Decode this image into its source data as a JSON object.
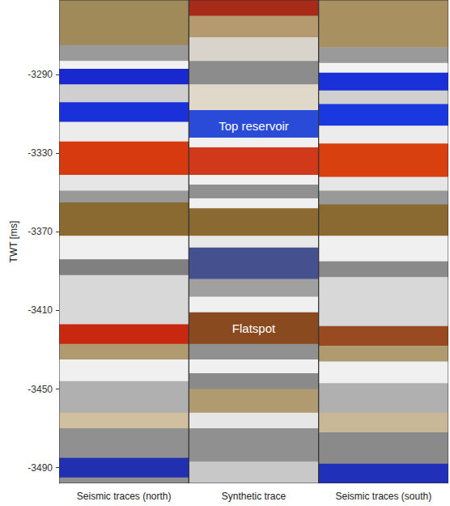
{
  "chart_data": {
    "type": "seismic",
    "y_label": "TWT [ms]",
    "ylim": [
      -3498,
      -3252
    ],
    "yticks": [
      -3490,
      -3450,
      -3410,
      -3370,
      -3330,
      -3290
    ],
    "panels": [
      {
        "name": "Seismic traces (north)",
        "bands": [
          {
            "from": -3275,
            "to": -3252,
            "color": "#a08a5a"
          },
          {
            "from": -3283,
            "to": -3275,
            "color": "#9a9a9a"
          },
          {
            "from": -3287,
            "to": -3283,
            "color": "#f2f2f2"
          },
          {
            "from": -3295,
            "to": -3287,
            "color": "#1a28d0"
          },
          {
            "from": -3304,
            "to": -3295,
            "color": "#cfcfcf"
          },
          {
            "from": -3314,
            "to": -3304,
            "color": "#1a30d8"
          },
          {
            "from": -3324,
            "to": -3314,
            "color": "#ececec"
          },
          {
            "from": -3341,
            "to": -3324,
            "color": "#d83a10"
          },
          {
            "from": -3349,
            "to": -3341,
            "color": "#e6e6e6"
          },
          {
            "from": -3355,
            "to": -3349,
            "color": "#999999"
          },
          {
            "from": -3372,
            "to": -3355,
            "color": "#8a6a30"
          },
          {
            "from": -3384,
            "to": -3372,
            "color": "#f0f0f0"
          },
          {
            "from": -3392,
            "to": -3384,
            "color": "#808080"
          },
          {
            "from": -3417,
            "to": -3392,
            "color": "#d8d8d8"
          },
          {
            "from": -3427,
            "to": -3417,
            "color": "#c82810"
          },
          {
            "from": -3435,
            "to": -3427,
            "color": "#b09a70"
          },
          {
            "from": -3446,
            "to": -3435,
            "color": "#f0f0f0"
          },
          {
            "from": -3462,
            "to": -3446,
            "color": "#b0b0b0"
          },
          {
            "from": -3470,
            "to": -3462,
            "color": "#d0c0a0"
          },
          {
            "from": -3485,
            "to": -3470,
            "color": "#909090"
          },
          {
            "from": -3495,
            "to": -3485,
            "color": "#2030b0"
          },
          {
            "from": -3498,
            "to": -3495,
            "color": "#909090"
          }
        ]
      },
      {
        "name": "Synthetic trace",
        "bands": [
          {
            "from": -3260,
            "to": -3252,
            "color": "#a82a18"
          },
          {
            "from": -3271,
            "to": -3260,
            "color": "#b59a70"
          },
          {
            "from": -3283,
            "to": -3271,
            "color": "#d8d4cc"
          },
          {
            "from": -3295,
            "to": -3283,
            "color": "#8c8c8c"
          },
          {
            "from": -3308,
            "to": -3295,
            "color": "#e0d8c8"
          },
          {
            "from": -3322,
            "to": -3308,
            "color": "#2a4ad8"
          },
          {
            "from": -3327,
            "to": -3322,
            "color": "#f0f0f0"
          },
          {
            "from": -3341,
            "to": -3327,
            "color": "#d03a1a"
          },
          {
            "from": -3346,
            "to": -3341,
            "color": "#f0f0f0"
          },
          {
            "from": -3353,
            "to": -3346,
            "color": "#909090"
          },
          {
            "from": -3358,
            "to": -3353,
            "color": "#f0f0f0"
          },
          {
            "from": -3372,
            "to": -3358,
            "color": "#8a6a30"
          },
          {
            "from": -3378,
            "to": -3372,
            "color": "#e8e8e8"
          },
          {
            "from": -3394,
            "to": -3378,
            "color": "#45508f"
          },
          {
            "from": -3403,
            "to": -3394,
            "color": "#a0a0a0"
          },
          {
            "from": -3411,
            "to": -3403,
            "color": "#f0f0f0"
          },
          {
            "from": -3427,
            "to": -3411,
            "color": "#8a4a20"
          },
          {
            "from": -3435,
            "to": -3427,
            "color": "#909090"
          },
          {
            "from": -3442,
            "to": -3435,
            "color": "#f0f0f0"
          },
          {
            "from": -3450,
            "to": -3442,
            "color": "#8a8a8a"
          },
          {
            "from": -3462,
            "to": -3450,
            "color": "#b09a70"
          },
          {
            "from": -3470,
            "to": -3462,
            "color": "#e6e6e6"
          },
          {
            "from": -3487,
            "to": -3470,
            "color": "#909090"
          },
          {
            "from": -3498,
            "to": -3487,
            "color": "#c8c8c8"
          }
        ]
      },
      {
        "name": "Seismic traces (south)",
        "bands": [
          {
            "from": -3276,
            "to": -3252,
            "color": "#a89060"
          },
          {
            "from": -3284,
            "to": -3276,
            "color": "#9a9a9a"
          },
          {
            "from": -3289,
            "to": -3284,
            "color": "#f2f2f2"
          },
          {
            "from": -3298,
            "to": -3289,
            "color": "#1a30d8"
          },
          {
            "from": -3305,
            "to": -3298,
            "color": "#d0d0d0"
          },
          {
            "from": -3316,
            "to": -3305,
            "color": "#1a38e0"
          },
          {
            "from": -3325,
            "to": -3316,
            "color": "#ececec"
          },
          {
            "from": -3342,
            "to": -3325,
            "color": "#d84010"
          },
          {
            "from": -3349,
            "to": -3342,
            "color": "#e6e6e6"
          },
          {
            "from": -3356,
            "to": -3349,
            "color": "#999999"
          },
          {
            "from": -3372,
            "to": -3356,
            "color": "#8a6a30"
          },
          {
            "from": -3385,
            "to": -3372,
            "color": "#f0f0f0"
          },
          {
            "from": -3393,
            "to": -3385,
            "color": "#8a8a8a"
          },
          {
            "from": -3418,
            "to": -3393,
            "color": "#d8d8d8"
          },
          {
            "from": -3428,
            "to": -3418,
            "color": "#9a4a20"
          },
          {
            "from": -3436,
            "to": -3428,
            "color": "#b09a70"
          },
          {
            "from": -3447,
            "to": -3436,
            "color": "#f0f0f0"
          },
          {
            "from": -3462,
            "to": -3447,
            "color": "#b0b0b0"
          },
          {
            "from": -3472,
            "to": -3462,
            "color": "#c8b898"
          },
          {
            "from": -3488,
            "to": -3472,
            "color": "#8a8a8a"
          },
          {
            "from": -3498,
            "to": -3488,
            "color": "#2030b8"
          }
        ]
      }
    ],
    "annotations": [
      {
        "text": "Top reservoir",
        "panel": "Synthetic trace",
        "y": -3316
      },
      {
        "text": "Flatspot",
        "panel": "Synthetic trace",
        "y": -3419
      }
    ]
  }
}
